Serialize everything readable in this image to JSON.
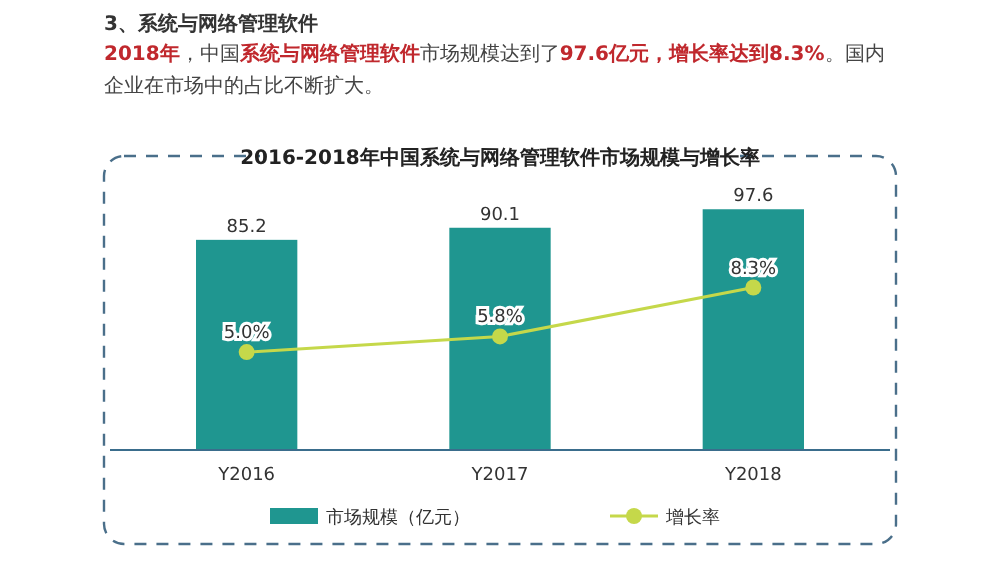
{
  "chart_data": {
    "type": "bar",
    "title": "2016-2018年中国系统与网络管理软件市场规模与增长率",
    "annotations": [
      "3、系统与网络管理软件",
      "**2018年**，中国**系统与网络管理软件**市场规模达到了**97.6亿元，增长率达到8.3%**。国内企业在市场中的占比不断扩大。"
    ],
    "categories": [
      "Y2016",
      "Y2017",
      "Y2018"
    ],
    "series": [
      {
        "name": "市场规模（亿元）",
        "color": "#1f9690",
        "values": [
          85.2,
          90.1,
          97.6
        ],
        "value_labels": [
          "85.2",
          "90.1",
          "97.6"
        ]
      },
      {
        "name": "增长率",
        "type": "line",
        "axis": "y2",
        "color": "#c5d84a",
        "values": [
          5.0,
          5.8,
          8.3
        ],
        "value_labels": [
          "5.0%",
          "5.8%",
          "8.3%"
        ]
      }
    ],
    "marker": "circle",
    "legend": "bottom"
  }
}
